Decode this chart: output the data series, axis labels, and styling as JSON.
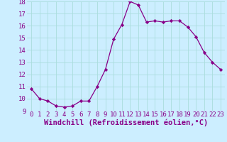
{
  "x": [
    0,
    1,
    2,
    3,
    4,
    5,
    6,
    7,
    8,
    9,
    10,
    11,
    12,
    13,
    14,
    15,
    16,
    17,
    18,
    19,
    20,
    21,
    22,
    23
  ],
  "y": [
    10.8,
    10.0,
    9.8,
    9.4,
    9.3,
    9.4,
    9.8,
    9.8,
    11.0,
    12.4,
    14.9,
    16.1,
    18.0,
    17.7,
    16.3,
    16.4,
    16.3,
    16.4,
    16.4,
    15.9,
    15.1,
    13.8,
    13.0,
    12.4
  ],
  "ylim": [
    9,
    18
  ],
  "yticks": [
    9,
    10,
    11,
    12,
    13,
    14,
    15,
    16,
    17,
    18
  ],
  "xticks": [
    0,
    1,
    2,
    3,
    4,
    5,
    6,
    7,
    8,
    9,
    10,
    11,
    12,
    13,
    14,
    15,
    16,
    17,
    18,
    19,
    20,
    21,
    22,
    23
  ],
  "xlabel": "Windchill (Refroidissement éolien,°C)",
  "line_color": "#880088",
  "marker": "D",
  "marker_size": 2.2,
  "bg_color": "#cceeff",
  "grid_color": "#aadddd",
  "xlabel_fontsize": 7.5,
  "tick_fontsize": 6.5,
  "xlim_min": -0.5,
  "xlim_max": 23.5
}
